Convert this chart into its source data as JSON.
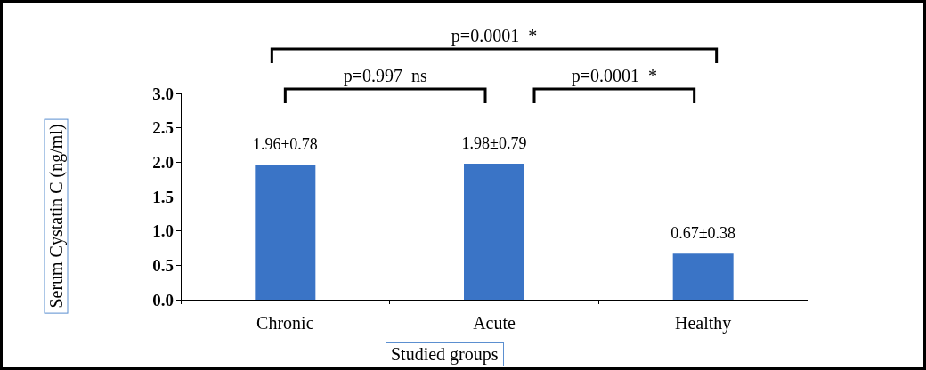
{
  "chart_data": {
    "type": "bar",
    "categories": [
      "Chronic",
      "Acute",
      "Healthy"
    ],
    "values": [
      1.96,
      1.98,
      0.67
    ],
    "color": "#3a74c6",
    "value_labels": [
      "1.96±0.78",
      "1.98±0.79",
      "0.67±0.38"
    ],
    "xlabel": "Studied groups",
    "ylabel": "Serum Cystatin C (ng/ml)",
    "ylim": [
      0,
      3
    ],
    "yticks": [
      {
        "value": 0,
        "label": "0.0"
      },
      0.5,
      {
        "value": 1,
        "label": "1.0"
      },
      1.5,
      {
        "value": 2,
        "label": "2.0"
      },
      2.5,
      {
        "value": 3,
        "label": "3.0"
      }
    ],
    "grid": false,
    "annotations": [
      "p=0.0001  *",
      "p=0.997  ns",
      "p=0.0001  *"
    ]
  }
}
